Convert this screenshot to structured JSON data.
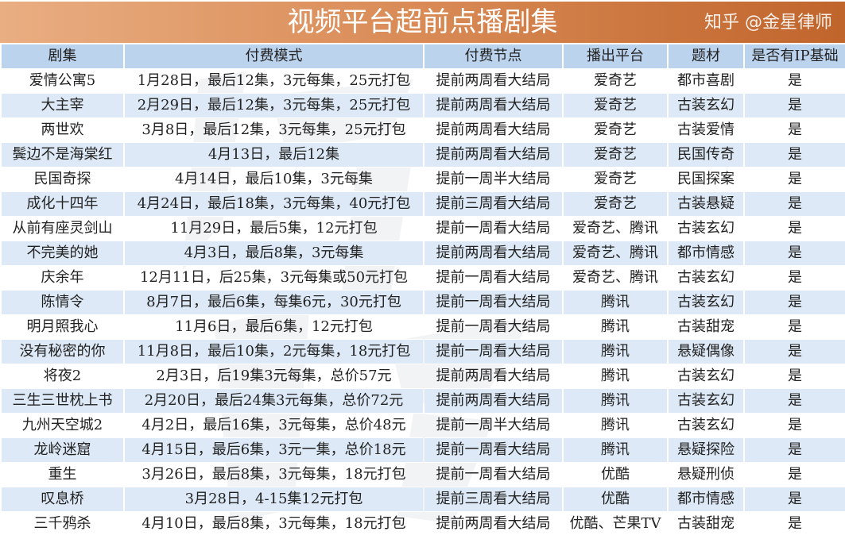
{
  "title": "视频平台超前点播剧集",
  "headers": [
    "剧集",
    "付费模式",
    "付费节点",
    "播出平台",
    "题材",
    "是否有IP基础"
  ],
  "rows": [
    [
      "爱情公寓5",
      "1月28日，最后12集，3元每集，25元打包",
      "提前两周看大结局",
      "爱奇艺",
      "都市喜剧",
      "是"
    ],
    [
      "大主宰",
      "2月29日，最后12集，3元每集，25元打包",
      "提前两周看大结局",
      "爱奇艺",
      "古装玄幻",
      "是"
    ],
    [
      "两世欢",
      "3月8日，最后12集，3元每集，25元打包",
      "提前两周看大结局",
      "爱奇艺",
      "古装爱情",
      "是"
    ],
    [
      "鬓边不是海棠红",
      "4月13日，最后12集",
      "提前两周看大结局",
      "爱奇艺",
      "民国传奇",
      "是"
    ],
    [
      "民国奇探",
      "4月14日，最后10集，3元每集",
      "提前一周半大结局",
      "爱奇艺",
      "民国探案",
      "是"
    ],
    [
      "成化十四年",
      "4月24日，最后18集，3元每集，40元打包",
      "提前三周看大结局",
      "爱奇艺",
      "古装悬疑",
      "是"
    ],
    [
      "从前有座灵剑山",
      "11月29日，最后5集，12元打包",
      "提前一周看大结局",
      "爱奇艺、腾讯",
      "古装玄幻",
      "是"
    ],
    [
      "不完美的她",
      "4月3日，最后8集，3元每集",
      "提前两周看大结局",
      "爱奇艺、腾讯",
      "都市情感",
      "是"
    ],
    [
      "庆余年",
      "12月11日，后25集，3元每集或50元打包",
      "提前一周看大结局",
      "爱奇艺、腾讯",
      "古装玄幻",
      "是"
    ],
    [
      "陈情令",
      "8月7日，最后6集，每集6元，30元打包",
      "提前一周看大结局",
      "腾讯",
      "古装玄幻",
      "是"
    ],
    [
      "明月照我心",
      "11月6日，最后6集，12元打包",
      "提前一周看大结局",
      "腾讯",
      "古装甜宠",
      "是"
    ],
    [
      "没有秘密的你",
      "11月8日，最后10集，2元每集，18元打包",
      "提前一周看大结局",
      "腾讯",
      "悬疑偶像",
      "是"
    ],
    [
      "将夜2",
      "2月3日，后19集3元每集，总价57元",
      "提前两周看大结局",
      "腾讯",
      "古装玄幻",
      "是"
    ],
    [
      "三生三世枕上书",
      "2月20日，最后24集3元每集，总价72元",
      "提前两周看大结局",
      "腾讯",
      "古装玄幻",
      "是"
    ],
    [
      "九州天空城2",
      "4月2日，最后16集，3元每集，总价48元",
      "提前一周半大结局",
      "腾讯",
      "古装玄幻",
      "是"
    ],
    [
      "龙岭迷窟",
      "4月15日，最后6集，3元一集，总价18元",
      "提前一周看大结局",
      "腾讯",
      "悬疑探险",
      "是"
    ],
    [
      "重生",
      "3月26日，最后8集，3元每集，18元打包",
      "提前一周看大结局",
      "优酷",
      "悬疑刑侦",
      "是"
    ],
    [
      "叹息桥",
      "3月28日，4-15集12元打包",
      "提前三周看大结局",
      "优酷",
      "都市情感",
      "是"
    ],
    [
      "三千鸦杀",
      "4月10日，最后8集，3元每集，18元打包",
      "提前两周看大结局",
      "优酷、芒果TV",
      "古装甜宠",
      "是"
    ]
  ],
  "watermark": "知乎 @金星律师",
  "colors": {
    "title_start": "#e9ae82",
    "title_end": "#c0652c",
    "header_bg": "#bcd3ee",
    "alt_row_bg": "#dde9f6"
  }
}
